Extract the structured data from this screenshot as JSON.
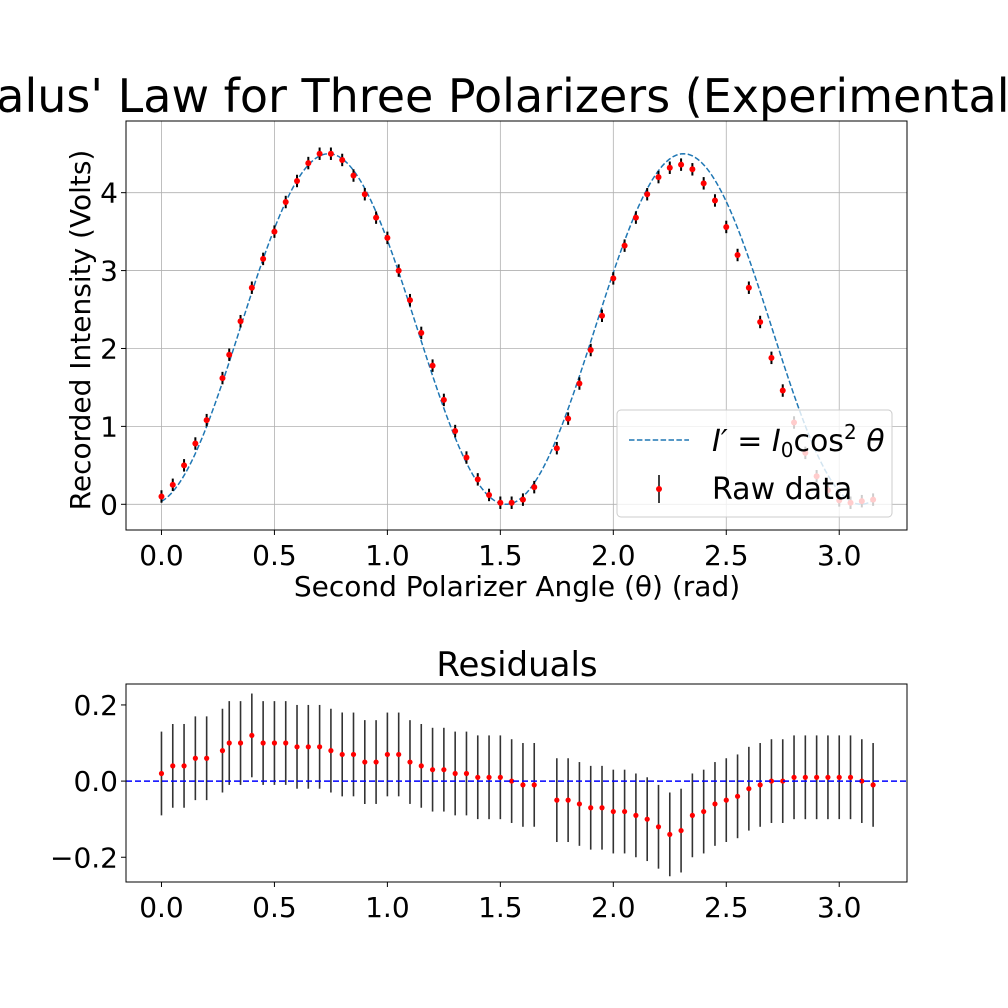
{
  "chart_data": [
    {
      "type": "line",
      "title": "Malus' Law for Three Polarizers (Experimental)",
      "xlabel": "Second Polarizer Angle (θ) (rad)",
      "ylabel": "Recorded Intensity (Volts)",
      "xlim": [
        -0.157,
        3.3
      ],
      "ylim": [
        -0.33,
        4.92
      ],
      "xticks": [
        "0.0",
        "0.5",
        "1.0",
        "1.5",
        "2.0",
        "2.5",
        "3.0"
      ],
      "yticks": [
        "0",
        "1",
        "2",
        "3",
        "4"
      ],
      "grid": true,
      "legend": {
        "placement": "lower-right",
        "entries": [
          {
            "label_main": "I′ = I",
            "label_sub": "0",
            "label_func": "cos",
            "label_sup": "2",
            "label_var": " θ",
            "style": "dashed-line",
            "color": "#1f77b4"
          },
          {
            "label": "Raw data",
            "style": "errorbar-point",
            "color": "#ff0000",
            "errcolor": "#000000"
          }
        ]
      },
      "series": [
        {
          "name": "I′ = I₀cos² θ",
          "kind": "fit",
          "color": "#1f77b4",
          "model": {
            "amplitude": 4.5,
            "phase": 0.74,
            "bounds": [
              0.0,
              3.15
            ],
            "samples": 300
          }
        },
        {
          "name": "Raw data",
          "kind": "errorbar",
          "color": "#ff0000",
          "errcolor": "#000000",
          "yerr": 0.08,
          "x": [
            0.0,
            0.05,
            0.1,
            0.15,
            0.2,
            0.27,
            0.3,
            0.35,
            0.4,
            0.45,
            0.5,
            0.55,
            0.6,
            0.65,
            0.7,
            0.75,
            0.8,
            0.85,
            0.9,
            0.95,
            1.0,
            1.05,
            1.1,
            1.15,
            1.2,
            1.25,
            1.3,
            1.35,
            1.4,
            1.45,
            1.5,
            1.55,
            1.6,
            1.65,
            1.75,
            1.8,
            1.85,
            1.9,
            1.95,
            2.0,
            2.05,
            2.1,
            2.15,
            2.2,
            2.25,
            2.3,
            2.35,
            2.4,
            2.45,
            2.5,
            2.55,
            2.6,
            2.65,
            2.7,
            2.75,
            2.8,
            2.85,
            2.9,
            2.95,
            3.0,
            3.05,
            3.1,
            3.15
          ],
          "y": [
            0.1,
            0.25,
            0.5,
            0.78,
            1.08,
            1.62,
            1.92,
            2.35,
            2.78,
            3.15,
            3.5,
            3.88,
            4.15,
            4.38,
            4.5,
            4.5,
            4.42,
            4.22,
            3.98,
            3.68,
            3.42,
            3.0,
            2.62,
            2.2,
            1.78,
            1.34,
            0.94,
            0.6,
            0.32,
            0.12,
            0.02,
            0.02,
            0.06,
            0.22,
            0.72,
            1.1,
            1.55,
            1.98,
            2.42,
            2.9,
            3.32,
            3.68,
            3.98,
            4.2,
            4.32,
            4.36,
            4.3,
            4.12,
            3.9,
            3.56,
            3.2,
            2.78,
            2.34,
            1.88,
            1.46,
            1.05,
            0.66,
            0.36,
            0.18,
            0.05,
            0.02,
            0.04,
            0.06
          ]
        }
      ]
    },
    {
      "type": "scatter",
      "title": "Residuals",
      "xlabel": "",
      "ylabel": "",
      "xlim": [
        -0.157,
        3.3
      ],
      "ylim": [
        -0.265,
        0.255
      ],
      "xticks": [
        "0.0",
        "0.5",
        "1.0",
        "1.5",
        "2.0",
        "2.5",
        "3.0"
      ],
      "yticks": [
        "−0.2",
        "0.0",
        "0.2"
      ],
      "grid": false,
      "reference_line": {
        "y": 0.0,
        "color": "#0000ff",
        "style": "dashed"
      },
      "series": [
        {
          "name": "",
          "kind": "errorbar",
          "color": "#ff0000",
          "errcolor": "#000000",
          "yerr": 0.11,
          "x": [
            0.0,
            0.05,
            0.1,
            0.15,
            0.2,
            0.27,
            0.3,
            0.35,
            0.4,
            0.45,
            0.5,
            0.55,
            0.6,
            0.65,
            0.7,
            0.75,
            0.8,
            0.85,
            0.9,
            0.95,
            1.0,
            1.05,
            1.1,
            1.15,
            1.2,
            1.25,
            1.3,
            1.35,
            1.4,
            1.45,
            1.5,
            1.55,
            1.6,
            1.65,
            1.75,
            1.8,
            1.85,
            1.9,
            1.95,
            2.0,
            2.05,
            2.1,
            2.15,
            2.2,
            2.25,
            2.3,
            2.35,
            2.4,
            2.45,
            2.5,
            2.55,
            2.6,
            2.65,
            2.7,
            2.75,
            2.8,
            2.85,
            2.9,
            2.95,
            3.0,
            3.05,
            3.1,
            3.15
          ],
          "y": [
            0.02,
            0.04,
            0.04,
            0.06,
            0.06,
            0.08,
            0.1,
            0.1,
            0.12,
            0.1,
            0.1,
            0.1,
            0.09,
            0.09,
            0.09,
            0.08,
            0.07,
            0.07,
            0.05,
            0.05,
            0.07,
            0.07,
            0.05,
            0.04,
            0.03,
            0.03,
            0.02,
            0.02,
            0.01,
            0.01,
            0.01,
            0.0,
            -0.01,
            -0.01,
            -0.05,
            -0.05,
            -0.06,
            -0.07,
            -0.07,
            -0.08,
            -0.08,
            -0.09,
            -0.1,
            -0.12,
            -0.14,
            -0.13,
            -0.09,
            -0.08,
            -0.06,
            -0.05,
            -0.04,
            -0.02,
            -0.01,
            0.0,
            0.0,
            0.01,
            0.01,
            0.01,
            0.01,
            0.01,
            0.01,
            0.0,
            -0.01
          ]
        }
      ]
    }
  ]
}
